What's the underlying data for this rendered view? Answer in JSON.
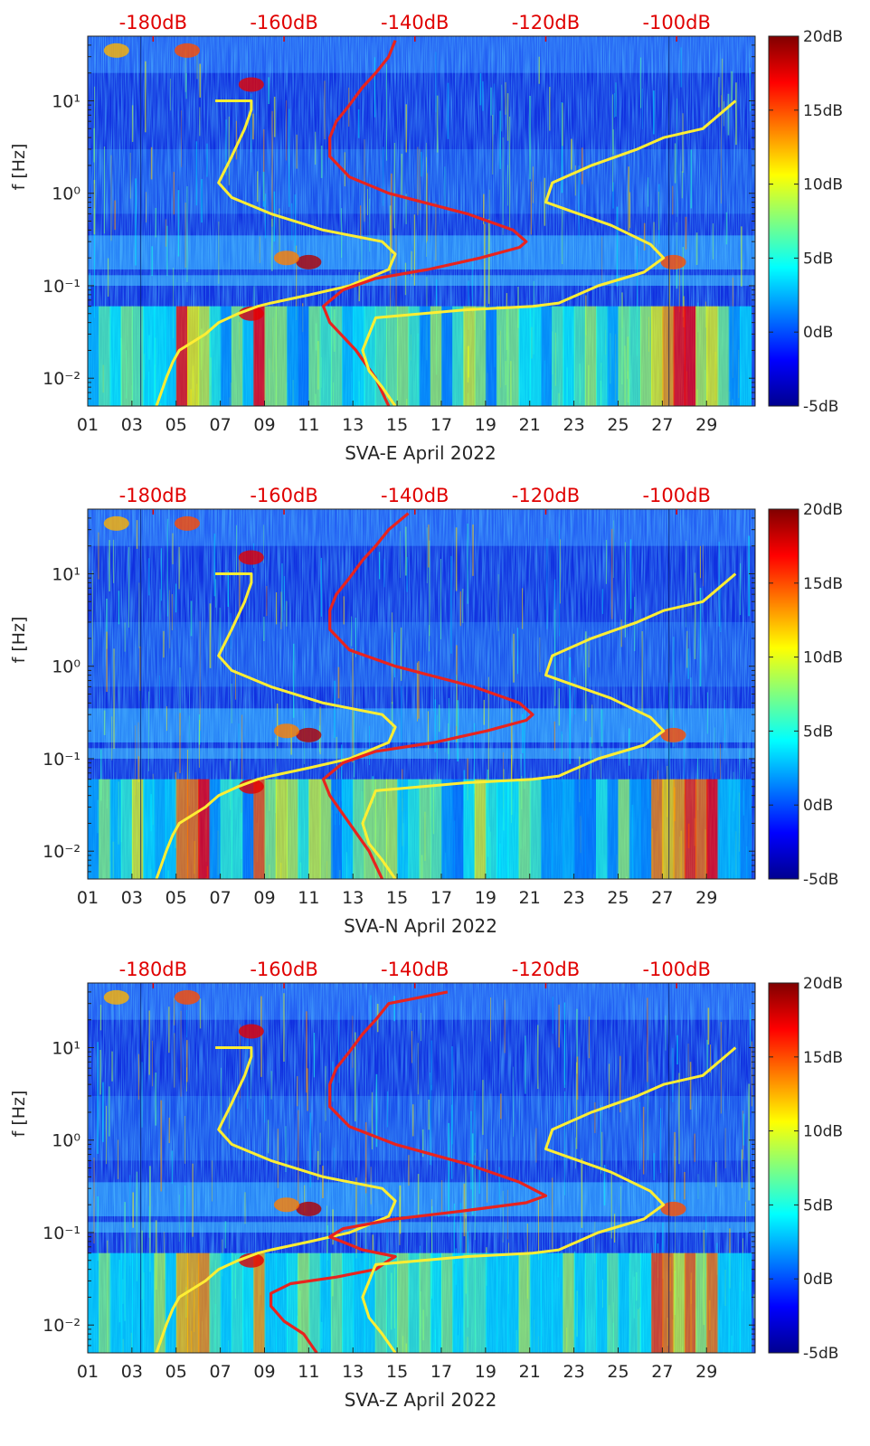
{
  "chart_data": [
    {
      "type": "heatmap",
      "xlabel": "SVA-E April 2022",
      "ylabel": "f [Hz]",
      "x_ticks": [
        "01",
        "03",
        "05",
        "07",
        "09",
        "11",
        "13",
        "15",
        "17",
        "19",
        "21",
        "23",
        "25",
        "27",
        "29"
      ],
      "y_ticks": [
        "10⁻²",
        "10⁻¹",
        "10⁰",
        "10¹"
      ],
      "top_axis_ticks": [
        "-180dB",
        "-160dB",
        "-140dB",
        "-120dB",
        "-100dB"
      ],
      "colorbar_ticks": [
        "20dB",
        "15dB",
        "10dB",
        "5dB",
        "0dB",
        "-5dB"
      ],
      "colorbar_range_db": [
        -5,
        20
      ],
      "colormap": "jet",
      "scale": "log y",
      "series": [
        {
          "color": "#ffee33",
          "x_db": [
            -179.5,
            -178,
            -177,
            -176,
            -172,
            -170,
            -167,
            -164,
            -162,
            -156,
            -150,
            -144,
            -143,
            -145,
            -154,
            -162,
            -168,
            -170,
            -168,
            -166,
            -165,
            -165,
            -166,
            -170,
            -170.5
          ],
          "y_hz": [
            0.005,
            0.01,
            0.015,
            0.02,
            0.03,
            0.04,
            0.05,
            0.06,
            0.065,
            0.08,
            0.1,
            0.15,
            0.22,
            0.3,
            0.4,
            0.6,
            0.9,
            1.3,
            2.5,
            5,
            8,
            10,
            10,
            10,
            10
          ]
        },
        {
          "color": "#e8231e",
          "x_db": [
            -144,
            -146,
            -149,
            -153,
            -154,
            -151,
            -146,
            -138,
            -130,
            -124,
            -123,
            -125,
            -132,
            -144,
            -150,
            -153,
            -153,
            -152,
            -150,
            -148,
            -146,
            -144,
            -143
          ],
          "y_hz": [
            0.005,
            0.01,
            0.02,
            0.04,
            0.06,
            0.09,
            0.12,
            0.15,
            0.2,
            0.26,
            0.3,
            0.4,
            0.6,
            1,
            1.5,
            2.5,
            4,
            6,
            9,
            14,
            20,
            30,
            45
          ]
        },
        {
          "color": "#ffee33",
          "x_db": [
            -143,
            -145,
            -147,
            -148,
            -146,
            -132,
            -122,
            -118,
            -112,
            -105,
            -102,
            -104,
            -110,
            -120,
            -119,
            -113,
            -106,
            -102,
            -96,
            -91
          ],
          "y_hz": [
            0.005,
            0.008,
            0.012,
            0.02,
            0.045,
            0.055,
            0.06,
            0.065,
            0.1,
            0.14,
            0.2,
            0.28,
            0.45,
            0.8,
            1.3,
            2,
            3,
            4,
            5,
            10
          ]
        }
      ]
    },
    {
      "type": "heatmap",
      "xlabel": "SVA-N April 2022",
      "ylabel": "f [Hz]",
      "x_ticks": [
        "01",
        "03",
        "05",
        "07",
        "09",
        "11",
        "13",
        "15",
        "17",
        "19",
        "21",
        "23",
        "25",
        "27",
        "29"
      ],
      "y_ticks": [
        "10⁻²",
        "10⁻¹",
        "10⁰",
        "10¹"
      ],
      "top_axis_ticks": [
        "-180dB",
        "-160dB",
        "-140dB",
        "-120dB",
        "-100dB"
      ],
      "colorbar_ticks": [
        "20dB",
        "15dB",
        "10dB",
        "5dB",
        "0dB",
        "-5dB"
      ],
      "colorbar_range_db": [
        -5,
        20
      ],
      "colormap": "jet",
      "scale": "log y",
      "series": [
        {
          "color": "#ffee33",
          "x_db": [
            -179.5,
            -178,
            -177,
            -176,
            -172,
            -170,
            -167,
            -164,
            -162,
            -156,
            -150,
            -144,
            -143,
            -145,
            -154,
            -162,
            -168,
            -170,
            -168,
            -166,
            -165,
            -165,
            -166,
            -170,
            -170.5
          ],
          "y_hz": [
            0.005,
            0.01,
            0.015,
            0.02,
            0.03,
            0.04,
            0.05,
            0.06,
            0.065,
            0.08,
            0.1,
            0.15,
            0.22,
            0.3,
            0.4,
            0.6,
            0.9,
            1.3,
            2.5,
            5,
            8,
            10,
            10,
            10,
            10
          ]
        },
        {
          "color": "#e8231e",
          "x_db": [
            -145,
            -147,
            -150,
            -153,
            -154,
            -151,
            -146,
            -137,
            -129,
            -123,
            -122,
            -124,
            -131,
            -143,
            -150,
            -153,
            -153,
            -152,
            -150,
            -148,
            -146,
            -144,
            -141
          ],
          "y_hz": [
            0.005,
            0.01,
            0.02,
            0.04,
            0.06,
            0.09,
            0.12,
            0.15,
            0.2,
            0.26,
            0.3,
            0.4,
            0.6,
            1,
            1.5,
            2.5,
            4,
            6,
            9,
            14,
            20,
            30,
            45
          ]
        },
        {
          "color": "#ffee33",
          "x_db": [
            -143,
            -145,
            -147,
            -148,
            -146,
            -132,
            -122,
            -118,
            -112,
            -105,
            -102,
            -104,
            -110,
            -120,
            -119,
            -113,
            -106,
            -102,
            -96,
            -91
          ],
          "y_hz": [
            0.005,
            0.008,
            0.012,
            0.02,
            0.045,
            0.055,
            0.06,
            0.065,
            0.1,
            0.14,
            0.2,
            0.28,
            0.45,
            0.8,
            1.3,
            2,
            3,
            4,
            5,
            10
          ]
        }
      ]
    },
    {
      "type": "heatmap",
      "xlabel": "SVA-Z April 2022",
      "ylabel": "f [Hz]",
      "x_ticks": [
        "01",
        "03",
        "05",
        "07",
        "09",
        "11",
        "13",
        "15",
        "17",
        "19",
        "21",
        "23",
        "25",
        "27",
        "29"
      ],
      "y_ticks": [
        "10⁻²",
        "10⁻¹",
        "10⁰",
        "10¹"
      ],
      "top_axis_ticks": [
        "-180dB",
        "-160dB",
        "-140dB",
        "-120dB",
        "-100dB"
      ],
      "colorbar_ticks": [
        "20dB",
        "15dB",
        "10dB",
        "5dB",
        "0dB",
        "-5dB"
      ],
      "colorbar_range_db": [
        -5,
        20
      ],
      "colormap": "jet",
      "scale": "log y",
      "series": [
        {
          "color": "#ffee33",
          "x_db": [
            -179.5,
            -178,
            -177,
            -176,
            -172,
            -170,
            -167,
            -164,
            -162,
            -156,
            -150,
            -144,
            -143,
            -145,
            -154,
            -162,
            -168,
            -170,
            -168,
            -166,
            -165,
            -165,
            -166,
            -170,
            -170.5
          ],
          "y_hz": [
            0.005,
            0.01,
            0.015,
            0.02,
            0.03,
            0.04,
            0.05,
            0.06,
            0.065,
            0.08,
            0.1,
            0.15,
            0.22,
            0.3,
            0.4,
            0.6,
            0.9,
            1.3,
            2.5,
            5,
            8,
            10,
            10,
            10,
            10
          ]
        },
        {
          "color": "#e8231e",
          "x_db": [
            -155,
            -157,
            -160,
            -162,
            -162,
            -159,
            -152,
            -146,
            -144,
            -143,
            -148,
            -153,
            -151,
            -143,
            -133,
            -123,
            -120,
            -124,
            -132,
            -143,
            -150,
            -153,
            -153,
            -152,
            -150,
            -148,
            -146,
            -144,
            -135
          ],
          "y_hz": [
            0.005,
            0.008,
            0.011,
            0.016,
            0.022,
            0.028,
            0.033,
            0.04,
            0.05,
            0.055,
            0.065,
            0.09,
            0.11,
            0.14,
            0.17,
            0.21,
            0.25,
            0.35,
            0.55,
            0.9,
            1.4,
            2.3,
            4,
            6,
            9,
            14,
            20,
            30,
            40
          ]
        },
        {
          "color": "#ffee33",
          "x_db": [
            -143,
            -145,
            -147,
            -148,
            -146,
            -132,
            -122,
            -118,
            -112,
            -105,
            -102,
            -104,
            -110,
            -120,
            -119,
            -113,
            -106,
            -102,
            -96,
            -91
          ],
          "y_hz": [
            0.005,
            0.008,
            0.012,
            0.02,
            0.045,
            0.055,
            0.06,
            0.065,
            0.1,
            0.14,
            0.2,
            0.28,
            0.45,
            0.8,
            1.3,
            2,
            3,
            4,
            5,
            10
          ]
        }
      ]
    }
  ]
}
